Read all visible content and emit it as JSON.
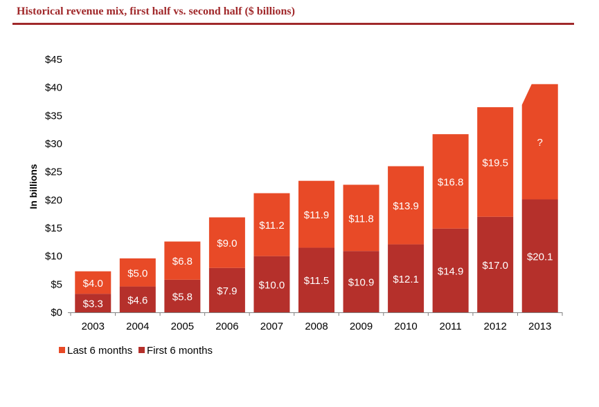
{
  "title": "Historical revenue mix, first half vs. second half ($ billions)",
  "colors": {
    "title": "#a0282a",
    "last6": "#e84a27",
    "first6": "#b5302b",
    "axis": "#7f7f7f",
    "label": "#ffffff"
  },
  "chart_data": {
    "type": "bar",
    "stacked": true,
    "categories": [
      "2003",
      "2004",
      "2005",
      "2006",
      "2007",
      "2008",
      "2009",
      "2010",
      "2011",
      "2012",
      "2013"
    ],
    "series": [
      {
        "name": "First 6 months",
        "values": [
          3.3,
          4.6,
          5.8,
          7.9,
          10.0,
          11.5,
          10.9,
          12.1,
          14.9,
          17.0,
          20.1
        ],
        "labels": [
          "$3.3",
          "$4.6",
          "$5.8",
          "$7.9",
          "$10.0",
          "$11.5",
          "$10.9",
          "$12.1",
          "$14.9",
          "$17.0",
          "$20.1"
        ]
      },
      {
        "name": "Last 6 months",
        "values": [
          4.0,
          5.0,
          6.8,
          9.0,
          11.2,
          11.9,
          11.8,
          13.9,
          16.8,
          19.5,
          null
        ],
        "labels": [
          "$4.0",
          "$5.0",
          "$6.8",
          "$9.0",
          "$11.2",
          "$11.9",
          "$11.8",
          "$13.9",
          "$16.8",
          "$19.5",
          "?"
        ]
      }
    ],
    "estimated_total_2013": 40.6,
    "ylabel": "In billions",
    "xlabel": "",
    "ylim": [
      0,
      45
    ],
    "yticks": [
      0,
      5,
      10,
      15,
      20,
      25,
      30,
      35,
      40,
      45
    ],
    "ytick_labels": [
      "$0",
      "$5",
      "$10",
      "$15",
      "$20",
      "$25",
      "$30",
      "$35",
      "$40",
      "$45"
    ],
    "grid": false,
    "legend_position": "bottom-left"
  }
}
